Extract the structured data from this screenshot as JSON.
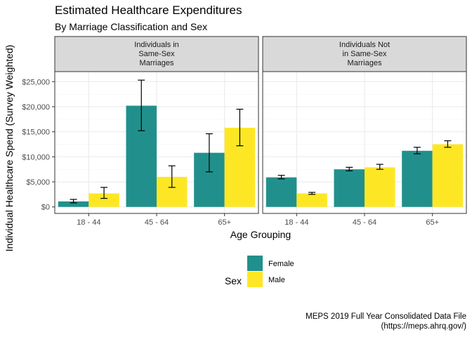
{
  "title": "Estimated Healthcare Expenditures",
  "subtitle": "By Marriage Classification and Sex",
  "caption": "MEPS 2019 Full Year Consolidated Data File\n(https://meps.ahrq.gov/)",
  "colors": {
    "Female": "#21908C",
    "Male": "#FDE725",
    "panel_strip": "#d9d9d9",
    "grid": "#ebebeb"
  },
  "chart_data": {
    "type": "bar",
    "xlabel": "Age Grouping",
    "ylabel": "Individual Healthcare Spend (Survey Weighted)",
    "ylim": [
      -1300,
      27000
    ],
    "yticks": [
      0,
      5000,
      10000,
      15000,
      20000,
      25000
    ],
    "ytick_labels": [
      "$0",
      "$5,000",
      "$10,000",
      "$15,000",
      "$20,000",
      "$25,000"
    ],
    "categories": [
      "18 - 44",
      "45 - 64",
      "65+"
    ],
    "legend": {
      "title": "Sex",
      "entries": [
        "Female",
        "Male"
      ],
      "position": "bottom"
    },
    "grid": true,
    "facets": [
      {
        "label": "Individuals in\nSame-Sex\nMarriages",
        "series": [
          {
            "name": "Female",
            "values": [
              1100,
              20200,
              10800
            ],
            "error_low": [
              800,
              15200,
              7000
            ],
            "error_high": [
              1500,
              25300,
              14600
            ]
          },
          {
            "name": "Male",
            "values": [
              2700,
              6000,
              15800
            ],
            "error_low": [
              1700,
              3900,
              12200
            ],
            "error_high": [
              3900,
              8200,
              19500
            ]
          }
        ]
      },
      {
        "label": "Individuals Not\nin Same-Sex\nMarriages",
        "series": [
          {
            "name": "Female",
            "values": [
              5900,
              7500,
              11200
            ],
            "error_low": [
              5600,
              7200,
              10600
            ],
            "error_high": [
              6300,
              7900,
              11900
            ]
          },
          {
            "name": "Male",
            "values": [
              2700,
              7900,
              12500
            ],
            "error_low": [
              2500,
              7500,
              11900
            ],
            "error_high": [
              2900,
              8500,
              13200
            ]
          }
        ]
      }
    ]
  }
}
